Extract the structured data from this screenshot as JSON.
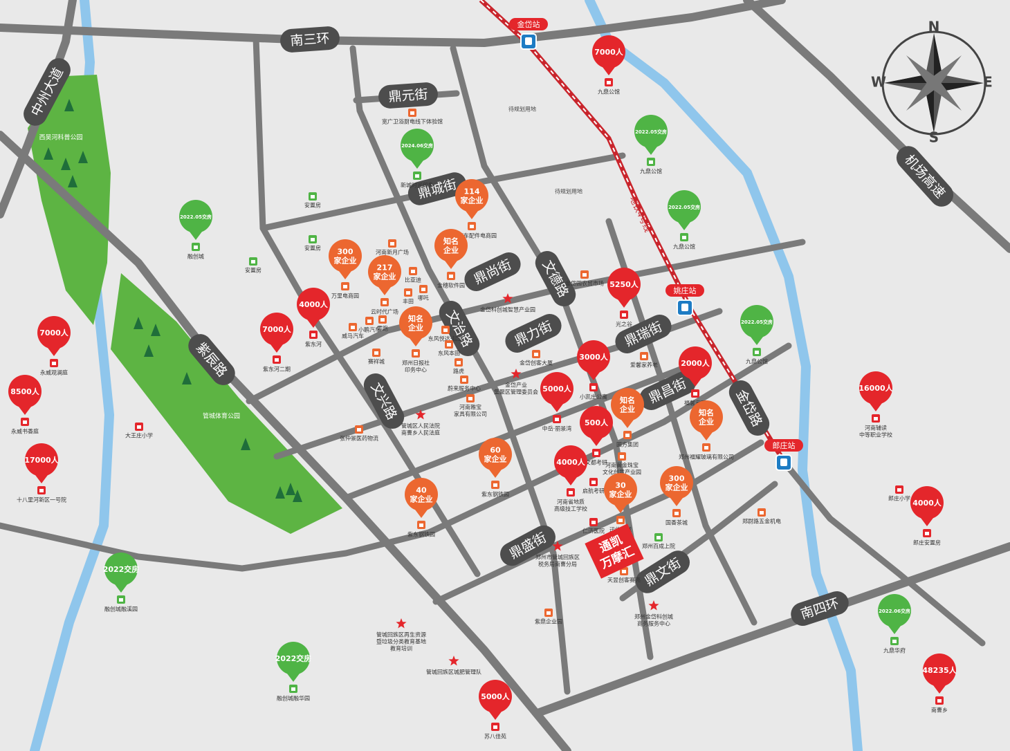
{
  "compass": {
    "north": "N",
    "south": "S",
    "west": "W",
    "east": "E"
  },
  "metro_line": "地铁4号线",
  "roads": [
    "南三环",
    "鼎元街",
    "鼎城街",
    "鼎尚街",
    "鼎力街",
    "鼎瑞街",
    "鼎昌街",
    "鼎盛街",
    "鼎文街",
    "南四环",
    "中州大道",
    "紫辰路",
    "文德路",
    "文治路",
    "文兴路",
    "金岱路",
    "机场高速"
  ],
  "stations": [
    "金岱站",
    "姚庄站",
    "郎庄站"
  ],
  "parks": [
    "西吴河科普公园",
    "管城体育公园"
  ],
  "plain_labels": [
    "待规划用地",
    "待规划用地"
  ],
  "highlight": [
    "通凯",
    "万摩汇"
  ],
  "pins": [
    {
      "label": [
        "7000人"
      ],
      "place": [
        "九鼎公馆"
      ],
      "color": "#e4262b"
    },
    {
      "label": [
        "4000人"
      ],
      "place": [
        "紫东河"
      ],
      "color": "#e4262b"
    },
    {
      "label": [
        "7000人"
      ],
      "place": [
        "紫东河二期"
      ],
      "color": "#e4262b"
    },
    {
      "label": [
        "7000人"
      ],
      "place": [
        "永威观澜庭"
      ],
      "color": "#e4262b"
    },
    {
      "label": [
        "8500人"
      ],
      "place": [
        "永威书香庭"
      ],
      "color": "#e4262b"
    },
    {
      "label": [
        "17000人"
      ],
      "place": [
        "十八里河新区一号院"
      ],
      "color": "#e4262b"
    },
    {
      "label": [
        "5250人"
      ],
      "place": [
        "光之谷"
      ],
      "color": "#e4262b"
    },
    {
      "label": [
        "3000人"
      ],
      "place": [
        "小凯庄公寓"
      ],
      "color": "#e4262b"
    },
    {
      "label": [
        "2000人"
      ],
      "place": [
        "福馨家园"
      ],
      "color": "#e4262b"
    },
    {
      "label": [
        "5000人"
      ],
      "place": [
        "中岳·丽景湾"
      ],
      "color": "#e4262b"
    },
    {
      "label": [
        "500人"
      ],
      "place": [
        "文都考研"
      ],
      "color": "#e4262b"
    },
    {
      "label": [
        "4000人"
      ],
      "place": [
        "河南省地质",
        "高级技工学校"
      ],
      "color": "#e4262b"
    },
    {
      "label": [
        "16000人"
      ],
      "place": [
        "河南辅读",
        "中等职业学校"
      ],
      "color": "#e4262b"
    },
    {
      "label": [
        "4000人"
      ],
      "place": [
        "郎庄安置房"
      ],
      "color": "#e4262b"
    },
    {
      "label": [
        "5000人"
      ],
      "place": [
        "苏八佳苑"
      ],
      "color": "#e4262b"
    },
    {
      "label": [
        "48235人"
      ],
      "place": [
        "南曹乡"
      ],
      "color": "#e4262b"
    },
    {
      "label": [
        "114",
        "家企业"
      ],
      "place": [
        "军诚汽车配件电商园"
      ],
      "color": "#ec6730"
    },
    {
      "label": [
        "知名",
        "企业"
      ],
      "place": [
        "金穗软件园"
      ],
      "color": "#ec6730"
    },
    {
      "label": [
        "300",
        "家企业"
      ],
      "place": [
        "万里电商园"
      ],
      "color": "#ec6730"
    },
    {
      "label": [
        "217",
        "家企业"
      ],
      "place": [
        "云时代广场"
      ],
      "color": "#ec6730"
    },
    {
      "label": [
        "知名",
        "企业"
      ],
      "place": [
        "郑州日报社",
        "印务中心"
      ],
      "color": "#ec6730"
    },
    {
      "label": [
        "知名",
        "企业"
      ],
      "place": [
        "圆方集团"
      ],
      "color": "#ec6730"
    },
    {
      "label": [
        "知名",
        "企业"
      ],
      "place": [
        "郑州福耀玻璃有限公司"
      ],
      "color": "#ec6730"
    },
    {
      "label": [
        "60",
        "家企业"
      ],
      "place": [
        "紫东钢铁园"
      ],
      "color": "#ec6730"
    },
    {
      "label": [
        "40",
        "家企业"
      ],
      "place": [
        "紫东钢铁园"
      ],
      "color": "#ec6730"
    },
    {
      "label": [
        "30",
        "家企业"
      ],
      "place": [
        "迅佳茶城"
      ],
      "color": "#ec6730"
    },
    {
      "label": [
        "300",
        "家企业"
      ],
      "place": [
        "国香茶城"
      ],
      "color": "#ec6730"
    },
    {
      "label": [
        "2024.06交房"
      ],
      "place": [
        "新城时光印象"
      ],
      "color": "#4fb445"
    },
    {
      "label": [
        "2022.05交房"
      ],
      "place": [
        "九鼎公馆"
      ],
      "color": "#4fb445"
    },
    {
      "label": [
        "2022.05交房"
      ],
      "place": [
        "九鼎公馆"
      ],
      "color": "#4fb445"
    },
    {
      "label": [
        "2022.05交房"
      ],
      "place": [
        "融创城"
      ],
      "color": "#4fb445"
    },
    {
      "label": [
        "2022.05交房"
      ],
      "place": [
        "九鼎公馆"
      ],
      "color": "#4fb445"
    },
    {
      "label": [
        "2022交房"
      ],
      "place": [
        "融创城融溪园"
      ],
      "color": "#4fb445"
    },
    {
      "label": [
        "2022交房"
      ],
      "place": [
        "融创城融华园"
      ],
      "color": "#4fb445"
    },
    {
      "label": [
        "2022.06交房"
      ],
      "place": [
        "九鼎华府"
      ],
      "color": "#4fb445"
    }
  ],
  "stars": [
    [
      "金岱科创城智慧产业园"
    ],
    [
      "金岱产业",
      "集聚区管理委员会"
    ],
    [
      "管城区人民法院",
      "南曹乡人民法庭"
    ],
    [
      "郑州市管城回族区",
      "税务局南曹分局"
    ],
    [
      "郑州金岱科创城",
      "商务服务中心"
    ],
    [
      "管城回族区再生资源",
      "暨垃圾分类教育基地",
      "教育培训"
    ],
    [
      "管城回族区城肥管理队"
    ]
  ],
  "pois": [
    [
      "宽广卫浴厨电线下体验馆"
    ],
    [
      "安置房"
    ],
    [
      "安置房"
    ],
    [
      "安置房"
    ],
    [
      "河南新月广场"
    ],
    [
      "比亚迪"
    ],
    [
      "丰田"
    ],
    [
      "哪吒"
    ],
    [
      "金岱园农贸市场"
    ],
    [
      "小鹏汽车"
    ],
    [
      "零跑"
    ],
    [
      "威马汽车"
    ],
    [
      "赛祥城"
    ],
    [
      "东风悦达·起亚"
    ],
    [
      "东风本田"
    ],
    [
      "路虎"
    ],
    [
      "蔚来服务中心"
    ],
    [
      "河南雅宝",
      "家具有限公司"
    ],
    [
      "金岱创客大厦"
    ],
    [
      "爱馨家养老"
    ],
    [
      "张仲景医药物流"
    ],
    [
      "大王庄小学"
    ],
    [
      "启航考研"
    ],
    [
      "河南黄金珠宝",
      "文化创意产业园"
    ],
    [
      "仁济医院"
    ],
    [
      "郑州百成上院"
    ],
    [
      "天昱创客赛亮"
    ],
    [
      "紫鼎企业园"
    ],
    [
      "郑尉路五金机电"
    ],
    [
      "郎庄小学"
    ]
  ]
}
